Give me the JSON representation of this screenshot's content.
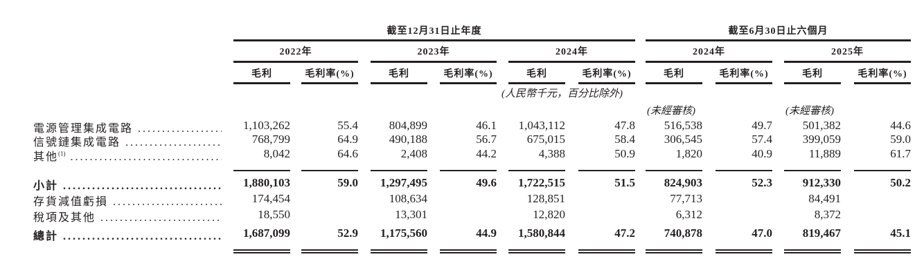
{
  "header": {
    "group_full_year": "截至12月31日止年度",
    "group_six_months": "截至6月30日止六個月",
    "years": [
      "2022年",
      "2023年",
      "2024年",
      "2024年",
      "2025年"
    ],
    "col_gross_profit": "毛利",
    "col_gross_margin": "毛利率(%)",
    "unit_note": "(人民幣千元，百分比除外)",
    "unaudited": [
      "(未經審核)",
      "(未經審核)"
    ]
  },
  "rows": [
    {
      "label": "電源管理集成電路",
      "footnote": "",
      "bold": false,
      "values": [
        "1,103,262",
        "55.4",
        "804,899",
        "46.1",
        "1,043,112",
        "47.8",
        "516,538",
        "49.7",
        "501,382",
        "44.6"
      ]
    },
    {
      "label": "信號鏈集成電路",
      "footnote": "",
      "bold": false,
      "values": [
        "768,799",
        "64.9",
        "490,188",
        "56.7",
        "675,015",
        "58.4",
        "306,545",
        "57.4",
        "399,059",
        "59.0"
      ]
    },
    {
      "label": "其他",
      "footnote": "(1)",
      "bold": false,
      "values": [
        "8,042",
        "64.6",
        "2,408",
        "44.2",
        "4,388",
        "50.9",
        "1,820",
        "40.9",
        "11,889",
        "61.7"
      ]
    },
    {
      "label": "小計",
      "footnote": "",
      "bold": true,
      "values": [
        "1,880,103",
        "59.0",
        "1,297,495",
        "49.6",
        "1,722,515",
        "51.5",
        "824,903",
        "52.3",
        "912,330",
        "50.2"
      ]
    },
    {
      "label": "存貨減值虧損",
      "footnote": "",
      "bold": false,
      "values": [
        "174,454",
        "",
        "108,634",
        "",
        "128,851",
        "",
        "77,713",
        "",
        "84,491",
        ""
      ]
    },
    {
      "label": "稅項及其他",
      "footnote": "",
      "bold": false,
      "values": [
        "18,550",
        "",
        "13,301",
        "",
        "12,820",
        "",
        "6,312",
        "",
        "8,372",
        ""
      ]
    },
    {
      "label": "總計",
      "footnote": "",
      "bold": true,
      "values": [
        "1,687,099",
        "52.9",
        "1,175,560",
        "44.9",
        "1,580,844",
        "47.2",
        "740,878",
        "47.0",
        "819,467",
        "45.1"
      ]
    }
  ]
}
